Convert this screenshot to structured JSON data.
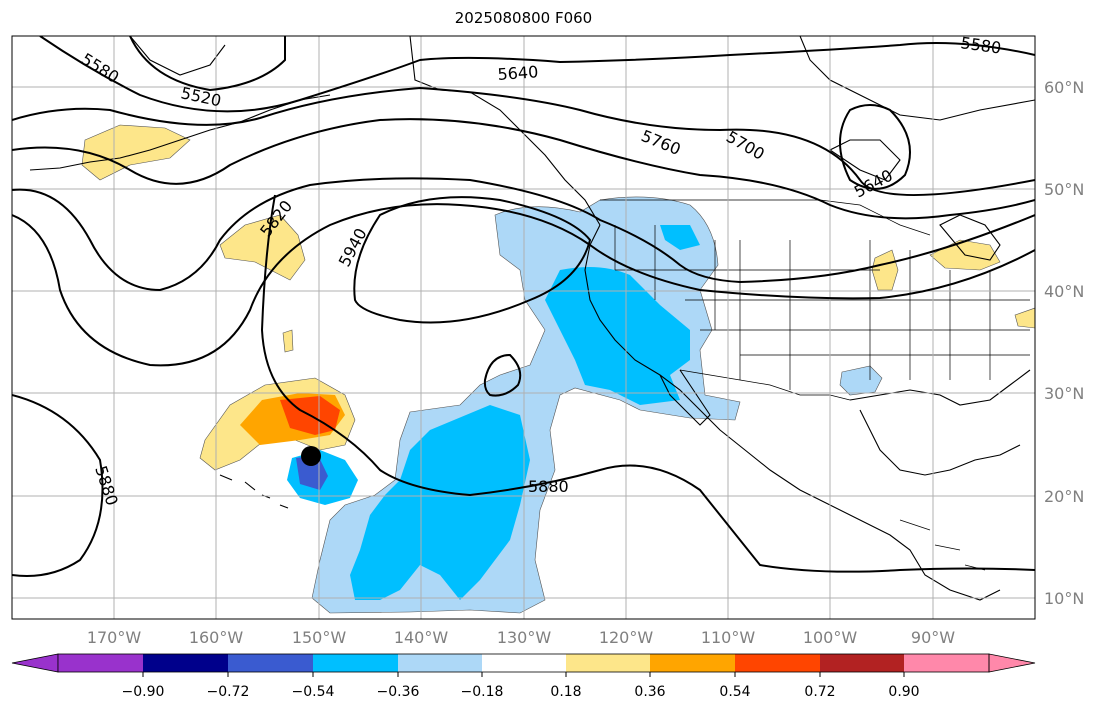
{
  "title": "2025080800 F060",
  "map": {
    "projection": "plate-carree",
    "lon_range": [
      -180,
      -80
    ],
    "lat_range": [
      8,
      65
    ],
    "lon_labels": [
      "170°W",
      "160°W",
      "150°W",
      "140°W",
      "130°W",
      "120°W",
      "110°W",
      "100°W",
      "90°W"
    ],
    "lat_labels": [
      "60°N",
      "50°N",
      "40°N",
      "30°N",
      "20°N",
      "10°N"
    ],
    "contour_labels": [
      "5580",
      "5520",
      "5640",
      "5760",
      "5700",
      "5640",
      "5820",
      "5940",
      "5880",
      "5880",
      "5580"
    ],
    "storm_marker": {
      "lon": -150.2,
      "lat": 23.8
    },
    "colors": {
      "coast": "#000000",
      "grid": "#b0b0b0",
      "contour": "#000000"
    }
  },
  "colorbar": {
    "ticks": [
      "−0.90",
      "−0.72",
      "−0.54",
      "−0.36",
      "−0.18",
      "0.18",
      "0.36",
      "0.54",
      "0.72",
      "0.90"
    ],
    "colors": [
      "#9932cc",
      "#00008b",
      "#3a5bd0",
      "#00bfff",
      "#add8f7",
      "#ffffff",
      "#fde68a",
      "#ffa500",
      "#ff4500",
      "#b22222",
      "#ff88aa"
    ]
  }
}
